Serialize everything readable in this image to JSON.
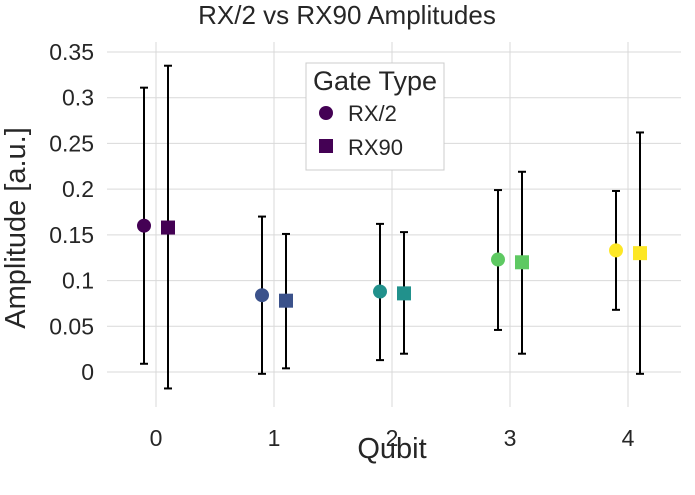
{
  "chart_data": {
    "type": "scatter",
    "title": "RX/2 vs RX90 Amplitudes",
    "xlabel": "Qubit",
    "ylabel": "Amplitude [a.u.]",
    "xlim": [
      -0.5,
      4.5
    ],
    "ylim": [
      -0.04,
      0.35
    ],
    "x_ticks": [
      0,
      1,
      2,
      3,
      4
    ],
    "y_ticks": [
      0,
      0.05,
      0.1,
      0.15,
      0.2,
      0.25,
      0.3,
      0.35
    ],
    "y_tick_labels": [
      "0",
      "0.05",
      "0.1",
      "0.15",
      "0.2",
      "0.25",
      "0.3",
      "0.35"
    ],
    "grid": true,
    "legend": {
      "title": "Gate Type",
      "placement": "top-center",
      "entries": [
        "RX/2",
        "RX90"
      ]
    },
    "point_colors": [
      "#440154",
      "#3b528b",
      "#21918c",
      "#5ec962",
      "#fde725"
    ],
    "series": [
      {
        "name": "RX/2",
        "marker": "circle",
        "x": [
          0,
          1,
          2,
          3,
          4
        ],
        "y": [
          0.16,
          0.084,
          0.088,
          0.123,
          0.133
        ],
        "err_low": [
          0.009,
          -0.002,
          0.013,
          0.046,
          0.068
        ],
        "err_high": [
          0.311,
          0.17,
          0.162,
          0.199,
          0.198
        ]
      },
      {
        "name": "RX90",
        "marker": "square",
        "x": [
          0,
          1,
          2,
          3,
          4
        ],
        "y": [
          0.158,
          0.078,
          0.086,
          0.12,
          0.13
        ],
        "err_low": [
          -0.018,
          0.004,
          0.02,
          0.02,
          -0.002
        ],
        "err_high": [
          0.335,
          0.151,
          0.153,
          0.219,
          0.262
        ]
      }
    ]
  }
}
